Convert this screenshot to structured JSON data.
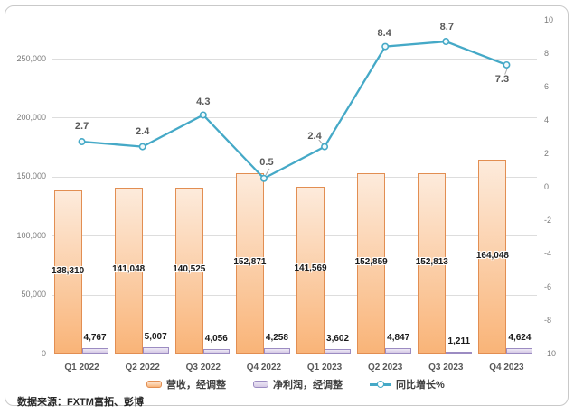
{
  "source_note": "数据来源：FXTM富拓、彭博",
  "colors": {
    "revenue_fill_top": "#FDEBDC",
    "revenue_fill_bottom": "#F9B478",
    "revenue_border": "#E28E52",
    "profit_fill_top": "#EFEAF6",
    "profit_fill_bottom": "#D5C9E5",
    "profit_border": "#9C8CC2",
    "line": "#45A9C7",
    "marker_fill": "#F2FAFC",
    "leader": "#A6A6A6",
    "grid": "#DDDDDD",
    "zero_line": "#BDBDBD",
    "axis_text": "#7A7A7A",
    "category_text": "#595959",
    "frame_border": "#C9C9C9"
  },
  "chart_data": {
    "type": "combo",
    "categories": [
      "Q1 2022",
      "Q2 2022",
      "Q3 2022",
      "Q4 2022",
      "Q1 2023",
      "Q2 2023",
      "Q3 2023",
      "Q4 2023"
    ],
    "series": [
      {
        "name": "营收，经调整",
        "type": "bar",
        "axis": "left",
        "values": [
          138310,
          141048,
          140525,
          152871,
          141569,
          152859,
          152813,
          164048
        ],
        "labels": [
          "138,310",
          "141,048",
          "140,525",
          "152,871",
          "141,569",
          "152,859",
          "152,813",
          "164,048"
        ]
      },
      {
        "name": "净利润，经调整",
        "type": "bar",
        "axis": "left",
        "values": [
          4767,
          5007,
          4056,
          4258,
          3602,
          4847,
          1211,
          4624
        ],
        "labels": [
          "4,767",
          "5,007",
          "4,056",
          "4,258",
          "3,602",
          "4,847",
          "1,211",
          "4,624"
        ]
      },
      {
        "name": "同比增长%",
        "type": "line",
        "axis": "right",
        "values": [
          2.7,
          2.4,
          4.3,
          0.5,
          2.4,
          8.4,
          8.7,
          7.3
        ],
        "labels": [
          "2.7",
          "2.4",
          "4.3",
          "0.5",
          "2.4",
          "8.4",
          "8.7",
          "7.3"
        ]
      }
    ],
    "left_axis": {
      "min": 0,
      "max": 250000,
      "step": 50000,
      "tick_labels": [
        "0",
        "50,000",
        "100,000",
        "150,000",
        "200,000",
        "250,000"
      ]
    },
    "right_axis": {
      "min": -10,
      "max": 10,
      "step": 2,
      "tick_labels": [
        "-10",
        "-8",
        "-6",
        "-4",
        "-2",
        "0",
        "2",
        "4",
        "6",
        "8",
        "10"
      ]
    },
    "legend_position": "bottom",
    "grid": true
  }
}
